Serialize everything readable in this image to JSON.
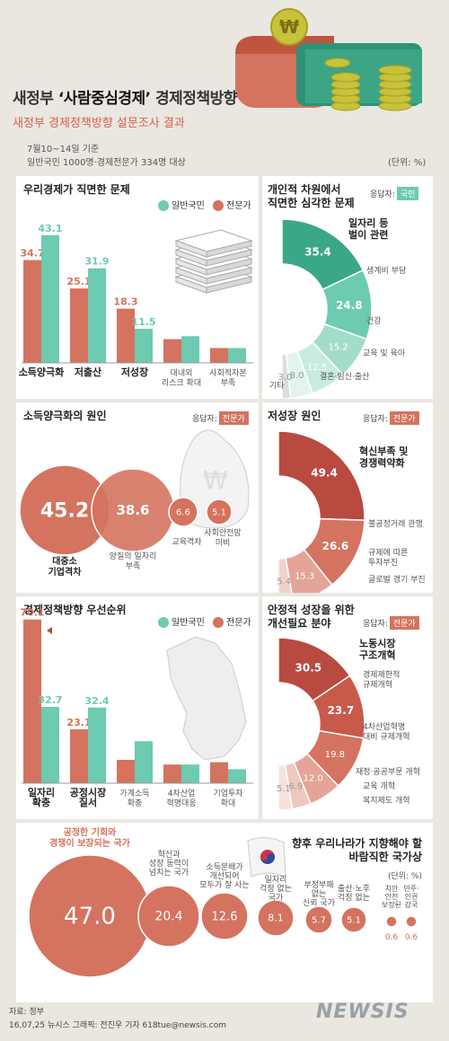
{
  "header": {
    "title_prefix": "새정부 ",
    "title_highlight": "‘사람중심경제’",
    "title_suffix": " 경제정책방향",
    "subtitle": "새정부 경제정책방향 설문조사 결과",
    "period": "7월10~14일 기준",
    "sample": "일반국민 1000명·경제전문가 334명 대상",
    "unit": "(단위: %)"
  },
  "colors": {
    "public": "#6ccbb0",
    "expert": "#d4735f",
    "dark_red": "#b84a40",
    "bg": "#e9e7e0"
  },
  "legend": {
    "public": "일반국민",
    "expert": "전문가"
  },
  "respondent_label": "응답자:",
  "tags": {
    "public": "국민",
    "expert": "전문가"
  },
  "chart_data": [
    {
      "type": "bar",
      "title": "우리경제가 직면한 문제",
      "categories": [
        "소득양극화",
        "저출산",
        "저성장",
        "대내외\n리스크 확대",
        "사회적자본\n부족"
      ],
      "bold_categories": [
        true,
        true,
        true,
        false,
        false
      ],
      "series": [
        {
          "name": "전문가",
          "values": [
            34.7,
            25.1,
            18.3,
            8,
            5
          ]
        },
        {
          "name": "일반국민",
          "values": [
            43.1,
            31.9,
            11.5,
            9,
            5
          ]
        }
      ],
      "labels_shown": [
        [
          true,
          true,
          true,
          false,
          false
        ],
        [
          true,
          true,
          true,
          false,
          false
        ]
      ]
    },
    {
      "type": "pie",
      "title": "개인적 차원에서\n직면한 심각한 문제",
      "respondent": "국민",
      "slices": [
        {
          "label": "일자리 등\n벌이 관련",
          "value": 35.4
        },
        {
          "label": "생계비 부담",
          "value": 24.8
        },
        {
          "label": "건강",
          "value": 15.2
        },
        {
          "label": "교육 및 육아",
          "value": 12.5
        },
        {
          "label": "결혼·임신·출산",
          "value": 8.0
        },
        {
          "label": "기타",
          "value": 3.0
        }
      ]
    },
    {
      "type": "bubble",
      "title": "소득양극화의 원인",
      "respondent": "전문가",
      "items": [
        {
          "label": "대중소\n기업격차",
          "value": 45.2
        },
        {
          "label": "양질의 일자리\n부족",
          "value": 38.6
        },
        {
          "label": "교육격차",
          "value": 6.6
        },
        {
          "label": "사회안전망\n미비",
          "value": 5.1
        }
      ]
    },
    {
      "type": "pie",
      "title": "저성장 원인",
      "respondent": "전문가",
      "slices": [
        {
          "label": "혁신부족 및\n경쟁력약화",
          "value": 49.4
        },
        {
          "label": "불공정거래 관행",
          "value": 26.6
        },
        {
          "label": "규제에 따른\n투자부진",
          "value": 15.3
        },
        {
          "label": "글로벌 경기 부진",
          "value": 5.4
        }
      ]
    },
    {
      "type": "bar",
      "title": "경제정책방향 우선순위",
      "categories": [
        "일자리\n확충",
        "공정시장\n질서",
        "가계소득\n확충",
        "4차산업\n혁명대응",
        "기업투자\n확대"
      ],
      "bold_categories": [
        true,
        true,
        false,
        false,
        false
      ],
      "series": [
        {
          "name": "전문가",
          "values": [
            70.1,
            23.1,
            10,
            8,
            9
          ]
        },
        {
          "name": "일반국민",
          "values": [
            32.7,
            32.4,
            18,
            8,
            6
          ]
        }
      ],
      "labels_shown": [
        [
          true,
          true,
          false,
          false,
          false
        ],
        [
          true,
          true,
          false,
          false,
          false
        ]
      ]
    },
    {
      "type": "pie",
      "title": "안정적 성장을 위한\n개선필요 분야",
      "respondent": "전문가",
      "slices": [
        {
          "label": "노동시장\n구조개혁",
          "value": 30.5
        },
        {
          "label": "경제제한적\n규제개혁",
          "value": 23.7
        },
        {
          "label": "4차산업혁명\n대비 규제개혁",
          "value": 19.8
        },
        {
          "label": "재정·공공부문 개혁",
          "value": 12.0
        },
        {
          "label": "교육 개혁",
          "value": 6.9
        },
        {
          "label": "복지제도 개혁",
          "value": 5.1
        }
      ]
    },
    {
      "type": "bubble",
      "title": "향후 우리나라가 지향해야 할\n바람직한 국가상",
      "unit": "(단위: %)",
      "items": [
        {
          "label": "공정한 기회와\n경쟁이 보장되는 국가",
          "value": 47.0
        },
        {
          "label": "혁신과\n성장 동력이\n넘치는 국가",
          "value": 20.4
        },
        {
          "label": "소득분배가\n개선되어\n모두가 잘 사는",
          "value": 12.6
        },
        {
          "label": "일자리\n걱정 없는\n국가",
          "value": 8.1
        },
        {
          "label": "부정부패\n없는\n신뢰 국가",
          "value": 5.7
        },
        {
          "label": "출산·노후\n걱정 없는",
          "value": 5.1
        },
        {
          "label": "치안\n안전\n보장된",
          "value": 0.6
        },
        {
          "label": "민주·\n인권\n강국",
          "value": 0.6
        }
      ]
    }
  ],
  "footer": {
    "source": "자료: 정부",
    "credit": "16,07,25 뉴시스 그래픽: 전진우 기자 618tue@newsis.com",
    "logo": "NEWSIS"
  },
  "coin_symbol": "₩"
}
